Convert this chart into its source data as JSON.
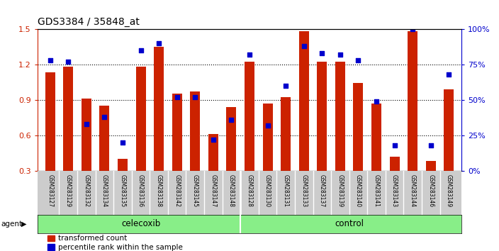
{
  "title": "GDS3384 / 35848_at",
  "samples": [
    "GSM283127",
    "GSM283129",
    "GSM283132",
    "GSM283134",
    "GSM283135",
    "GSM283136",
    "GSM283138",
    "GSM283142",
    "GSM283145",
    "GSM283147",
    "GSM283148",
    "GSM283128",
    "GSM283130",
    "GSM283131",
    "GSM283133",
    "GSM283137",
    "GSM283139",
    "GSM283140",
    "GSM283141",
    "GSM283143",
    "GSM283144",
    "GSM283146",
    "GSM283149"
  ],
  "transformed_count": [
    1.13,
    1.18,
    0.91,
    0.85,
    0.4,
    1.18,
    1.35,
    0.95,
    0.97,
    0.61,
    0.84,
    1.22,
    0.87,
    0.92,
    1.48,
    1.22,
    1.22,
    1.04,
    0.87,
    0.42,
    1.48,
    0.38,
    0.99
  ],
  "percentile_rank": [
    78,
    77,
    33,
    38,
    20,
    85,
    90,
    52,
    52,
    22,
    36,
    82,
    32,
    60,
    88,
    83,
    82,
    78,
    49,
    18,
    100,
    18,
    68
  ],
  "agent_groups": [
    {
      "label": "celecoxib",
      "start": 0,
      "end": 11
    },
    {
      "label": "control",
      "start": 11,
      "end": 23
    }
  ],
  "ylim_left": [
    0.3,
    1.5
  ],
  "ylim_right": [
    0,
    100
  ],
  "yticks_left": [
    0.3,
    0.6,
    0.9,
    1.2,
    1.5
  ],
  "yticks_right": [
    0,
    25,
    50,
    75,
    100
  ],
  "ytick_labels_right": [
    "0%",
    "25%",
    "50%",
    "75%",
    "100%"
  ],
  "bar_color": "#cc2200",
  "dot_color": "#0000cc",
  "bar_width": 0.55,
  "agent_divider": 11,
  "agent_bg": "#88ee88",
  "tick_area_bg": "#cccccc",
  "legend_items": [
    {
      "color": "#cc2200",
      "label": "transformed count"
    },
    {
      "color": "#0000cc",
      "label": "percentile rank within the sample"
    }
  ]
}
